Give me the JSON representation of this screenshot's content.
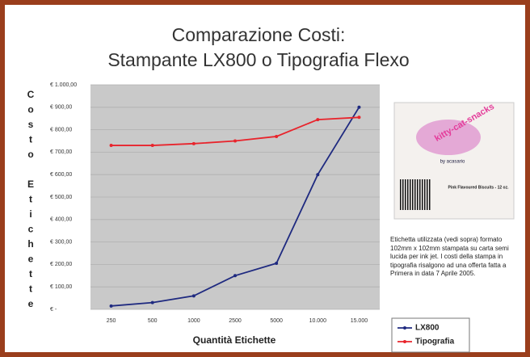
{
  "chart_data": {
    "type": "line",
    "title": "Comparazione Costi:",
    "subtitle": "Stampante LX800 o Tipografia Flexo",
    "y_label": "Costo Etichette",
    "x_label": "Quantità Etichette",
    "categories": [
      "250",
      "500",
      "1000",
      "2500",
      "5000",
      "10.000",
      "15.000"
    ],
    "series": [
      {
        "name": "LX800",
        "color": "#1f2a80",
        "values": [
          15,
          30,
          60,
          150,
          205,
          600,
          900
        ]
      },
      {
        "name": "Tipografia",
        "color": "#e8242c",
        "values": [
          730,
          730,
          738,
          750,
          770,
          845,
          855
        ]
      }
    ],
    "ylim": [
      0,
      1000
    ],
    "yticks": [
      {
        "value": 0,
        "label": "€ -"
      },
      {
        "value": 100,
        "label": "€ 100,00"
      },
      {
        "value": 200,
        "label": "€ 200,00"
      },
      {
        "value": 300,
        "label": "€ 300,00"
      },
      {
        "value": 400,
        "label": "€ 400,00"
      },
      {
        "value": 500,
        "label": "€ 500,00"
      },
      {
        "value": 600,
        "label": "€ 600,00"
      },
      {
        "value": 700,
        "label": "€ 700,00"
      },
      {
        "value": 800,
        "label": "€ 800,00"
      },
      {
        "value": 900,
        "label": "€ 900,00"
      },
      {
        "value": 1000,
        "label": "€ 1.000,00"
      }
    ],
    "grid": true,
    "legend": "bottom-right"
  },
  "side_panel": {
    "brand": "kitty-cat-snacks",
    "byline": "by acasario",
    "product": "Pink Flavoured Biscuits - 12 oz.",
    "caption": "Etichetta utilizzata (vedi sopra) formato 102mm x 102mm stampata su carta semi lucida per ink jet. I costi della stampa in tipografia risalgono ad una offerta fatta a Primera in data 7 Aprile 2005."
  }
}
